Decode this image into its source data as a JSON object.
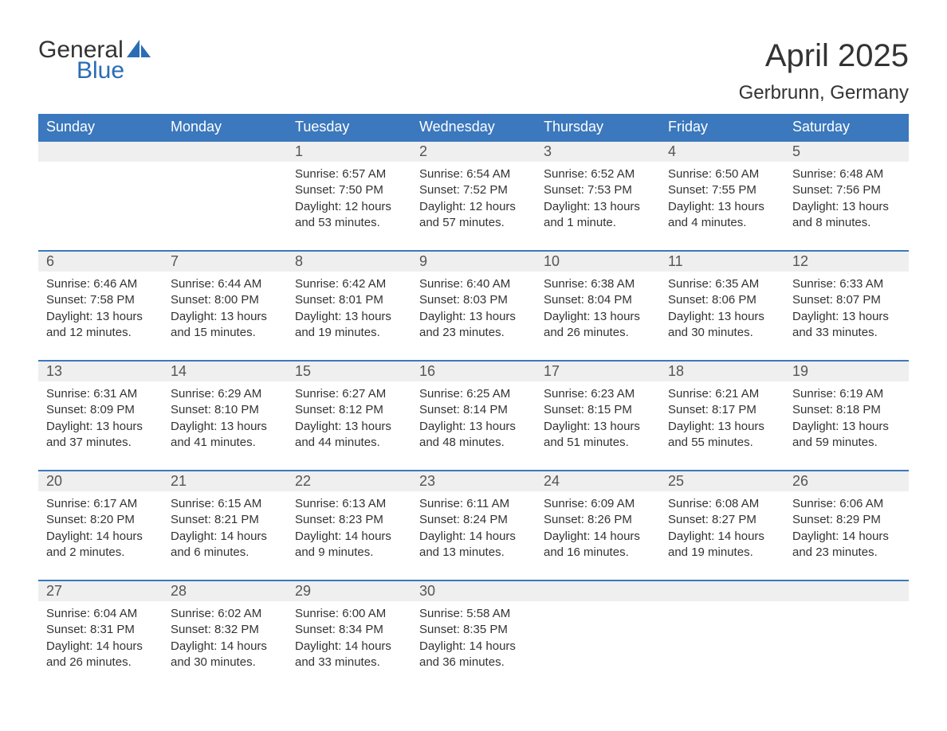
{
  "logo": {
    "word1": "General",
    "word2": "Blue",
    "brand_color": "#2a6db5"
  },
  "title": {
    "month": "April 2025",
    "location": "Gerbrunn, Germany"
  },
  "colors": {
    "header_bg": "#3b78bd",
    "header_text": "#ffffff",
    "daynum_bg": "#efefef",
    "daynum_border": "#3b78bd",
    "body_text": "#333333",
    "page_bg": "#ffffff"
  },
  "weekdays": [
    "Sunday",
    "Monday",
    "Tuesday",
    "Wednesday",
    "Thursday",
    "Friday",
    "Saturday"
  ],
  "weeks": [
    [
      null,
      null,
      {
        "day": "1",
        "sunrise": "Sunrise: 6:57 AM",
        "sunset": "Sunset: 7:50 PM",
        "daylight1": "Daylight: 12 hours",
        "daylight2": "and 53 minutes."
      },
      {
        "day": "2",
        "sunrise": "Sunrise: 6:54 AM",
        "sunset": "Sunset: 7:52 PM",
        "daylight1": "Daylight: 12 hours",
        "daylight2": "and 57 minutes."
      },
      {
        "day": "3",
        "sunrise": "Sunrise: 6:52 AM",
        "sunset": "Sunset: 7:53 PM",
        "daylight1": "Daylight: 13 hours",
        "daylight2": "and 1 minute."
      },
      {
        "day": "4",
        "sunrise": "Sunrise: 6:50 AM",
        "sunset": "Sunset: 7:55 PM",
        "daylight1": "Daylight: 13 hours",
        "daylight2": "and 4 minutes."
      },
      {
        "day": "5",
        "sunrise": "Sunrise: 6:48 AM",
        "sunset": "Sunset: 7:56 PM",
        "daylight1": "Daylight: 13 hours",
        "daylight2": "and 8 minutes."
      }
    ],
    [
      {
        "day": "6",
        "sunrise": "Sunrise: 6:46 AM",
        "sunset": "Sunset: 7:58 PM",
        "daylight1": "Daylight: 13 hours",
        "daylight2": "and 12 minutes."
      },
      {
        "day": "7",
        "sunrise": "Sunrise: 6:44 AM",
        "sunset": "Sunset: 8:00 PM",
        "daylight1": "Daylight: 13 hours",
        "daylight2": "and 15 minutes."
      },
      {
        "day": "8",
        "sunrise": "Sunrise: 6:42 AM",
        "sunset": "Sunset: 8:01 PM",
        "daylight1": "Daylight: 13 hours",
        "daylight2": "and 19 minutes."
      },
      {
        "day": "9",
        "sunrise": "Sunrise: 6:40 AM",
        "sunset": "Sunset: 8:03 PM",
        "daylight1": "Daylight: 13 hours",
        "daylight2": "and 23 minutes."
      },
      {
        "day": "10",
        "sunrise": "Sunrise: 6:38 AM",
        "sunset": "Sunset: 8:04 PM",
        "daylight1": "Daylight: 13 hours",
        "daylight2": "and 26 minutes."
      },
      {
        "day": "11",
        "sunrise": "Sunrise: 6:35 AM",
        "sunset": "Sunset: 8:06 PM",
        "daylight1": "Daylight: 13 hours",
        "daylight2": "and 30 minutes."
      },
      {
        "day": "12",
        "sunrise": "Sunrise: 6:33 AM",
        "sunset": "Sunset: 8:07 PM",
        "daylight1": "Daylight: 13 hours",
        "daylight2": "and 33 minutes."
      }
    ],
    [
      {
        "day": "13",
        "sunrise": "Sunrise: 6:31 AM",
        "sunset": "Sunset: 8:09 PM",
        "daylight1": "Daylight: 13 hours",
        "daylight2": "and 37 minutes."
      },
      {
        "day": "14",
        "sunrise": "Sunrise: 6:29 AM",
        "sunset": "Sunset: 8:10 PM",
        "daylight1": "Daylight: 13 hours",
        "daylight2": "and 41 minutes."
      },
      {
        "day": "15",
        "sunrise": "Sunrise: 6:27 AM",
        "sunset": "Sunset: 8:12 PM",
        "daylight1": "Daylight: 13 hours",
        "daylight2": "and 44 minutes."
      },
      {
        "day": "16",
        "sunrise": "Sunrise: 6:25 AM",
        "sunset": "Sunset: 8:14 PM",
        "daylight1": "Daylight: 13 hours",
        "daylight2": "and 48 minutes."
      },
      {
        "day": "17",
        "sunrise": "Sunrise: 6:23 AM",
        "sunset": "Sunset: 8:15 PM",
        "daylight1": "Daylight: 13 hours",
        "daylight2": "and 51 minutes."
      },
      {
        "day": "18",
        "sunrise": "Sunrise: 6:21 AM",
        "sunset": "Sunset: 8:17 PM",
        "daylight1": "Daylight: 13 hours",
        "daylight2": "and 55 minutes."
      },
      {
        "day": "19",
        "sunrise": "Sunrise: 6:19 AM",
        "sunset": "Sunset: 8:18 PM",
        "daylight1": "Daylight: 13 hours",
        "daylight2": "and 59 minutes."
      }
    ],
    [
      {
        "day": "20",
        "sunrise": "Sunrise: 6:17 AM",
        "sunset": "Sunset: 8:20 PM",
        "daylight1": "Daylight: 14 hours",
        "daylight2": "and 2 minutes."
      },
      {
        "day": "21",
        "sunrise": "Sunrise: 6:15 AM",
        "sunset": "Sunset: 8:21 PM",
        "daylight1": "Daylight: 14 hours",
        "daylight2": "and 6 minutes."
      },
      {
        "day": "22",
        "sunrise": "Sunrise: 6:13 AM",
        "sunset": "Sunset: 8:23 PM",
        "daylight1": "Daylight: 14 hours",
        "daylight2": "and 9 minutes."
      },
      {
        "day": "23",
        "sunrise": "Sunrise: 6:11 AM",
        "sunset": "Sunset: 8:24 PM",
        "daylight1": "Daylight: 14 hours",
        "daylight2": "and 13 minutes."
      },
      {
        "day": "24",
        "sunrise": "Sunrise: 6:09 AM",
        "sunset": "Sunset: 8:26 PM",
        "daylight1": "Daylight: 14 hours",
        "daylight2": "and 16 minutes."
      },
      {
        "day": "25",
        "sunrise": "Sunrise: 6:08 AM",
        "sunset": "Sunset: 8:27 PM",
        "daylight1": "Daylight: 14 hours",
        "daylight2": "and 19 minutes."
      },
      {
        "day": "26",
        "sunrise": "Sunrise: 6:06 AM",
        "sunset": "Sunset: 8:29 PM",
        "daylight1": "Daylight: 14 hours",
        "daylight2": "and 23 minutes."
      }
    ],
    [
      {
        "day": "27",
        "sunrise": "Sunrise: 6:04 AM",
        "sunset": "Sunset: 8:31 PM",
        "daylight1": "Daylight: 14 hours",
        "daylight2": "and 26 minutes."
      },
      {
        "day": "28",
        "sunrise": "Sunrise: 6:02 AM",
        "sunset": "Sunset: 8:32 PM",
        "daylight1": "Daylight: 14 hours",
        "daylight2": "and 30 minutes."
      },
      {
        "day": "29",
        "sunrise": "Sunrise: 6:00 AM",
        "sunset": "Sunset: 8:34 PM",
        "daylight1": "Daylight: 14 hours",
        "daylight2": "and 33 minutes."
      },
      {
        "day": "30",
        "sunrise": "Sunrise: 5:58 AM",
        "sunset": "Sunset: 8:35 PM",
        "daylight1": "Daylight: 14 hours",
        "daylight2": "and 36 minutes."
      },
      null,
      null,
      null
    ]
  ]
}
